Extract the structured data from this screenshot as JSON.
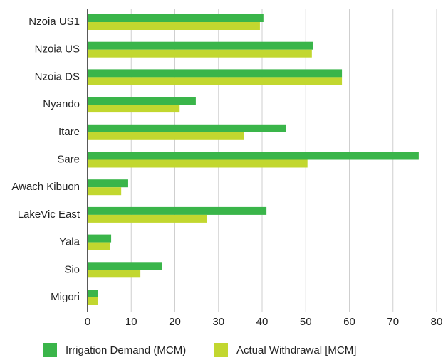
{
  "chart_data": {
    "type": "bar",
    "orientation": "horizontal",
    "categories": [
      "Nzoia US1",
      "Nzoia US",
      "Nzoia DS",
      "Nyando",
      "Itare",
      "Sare",
      "Awach Kibuon",
      "LakeVic East",
      "Yala",
      "Sio",
      "Migori"
    ],
    "series": [
      {
        "name": "Irrigation Demand (MCM)",
        "color": "#3ab54a",
        "values": [
          40.3,
          51.6,
          58.3,
          24.8,
          45.4,
          75.9,
          9.3,
          41.0,
          5.4,
          17.0,
          2.4
        ]
      },
      {
        "name": "Actual Withdrawal [MCM]",
        "color": "#c2d72f",
        "values": [
          39.5,
          51.4,
          58.3,
          21.1,
          35.9,
          50.4,
          7.7,
          27.3,
          5.1,
          12.1,
          2.3
        ]
      }
    ],
    "xlim": [
      0,
      80
    ],
    "xticks": [
      0,
      10,
      20,
      30,
      40,
      50,
      60,
      70,
      80
    ],
    "grid": true,
    "legend": "bottom"
  }
}
